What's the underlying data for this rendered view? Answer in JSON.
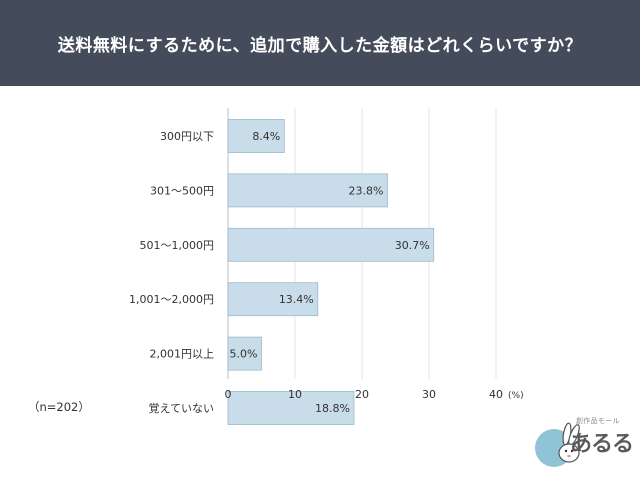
{
  "header": {
    "title": "送料無料にするために、追加で購入した金額はどれくらいですか？"
  },
  "note": "（n=202）",
  "logo": {
    "small_text": "創作品モール",
    "name": "あるる"
  },
  "colors": {
    "header_bg": "#444c5c",
    "bar_fill": "#c8dcea",
    "bar_stroke": "#9ab9cf",
    "grid": "#e6e6e6"
  },
  "chart_data": {
    "type": "bar",
    "orientation": "horizontal",
    "categories": [
      "300円以下",
      "301～500円",
      "501～1,000円",
      "1,001～2,000円",
      "2,001円以上",
      "覚えていない"
    ],
    "values": [
      8.4,
      23.8,
      30.7,
      13.4,
      5.0,
      18.8
    ],
    "value_labels": [
      "8.4%",
      "23.8%",
      "30.7%",
      "13.4%",
      "5.0%",
      "18.8%"
    ],
    "xlim": [
      0,
      40
    ],
    "xticks": [
      0,
      10,
      20,
      30,
      40
    ],
    "xunit": "(%)",
    "grid": true
  }
}
